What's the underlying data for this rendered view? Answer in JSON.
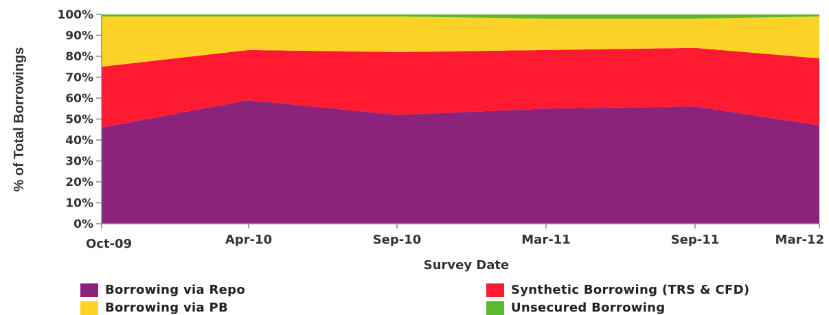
{
  "chart_data": {
    "type": "area",
    "stacked": true,
    "normalized": true,
    "title": "",
    "xlabel": "Survey Date",
    "ylabel": "% of Total Borrowings",
    "ylim": [
      0,
      100
    ],
    "y_ticks": [
      "0%",
      "10%",
      "20%",
      "30%",
      "40%",
      "50%",
      "60%",
      "70%",
      "80%",
      "90%",
      "100%"
    ],
    "categories": [
      "Oct-09",
      "Apr-10",
      "Sep-10",
      "Mar-11",
      "Sep-11",
      "Mar-12"
    ],
    "series": [
      {
        "name": "Borrowing via Repo",
        "color": "#8b237c",
        "values": [
          46,
          59,
          52,
          55,
          56,
          47
        ]
      },
      {
        "name": "Synthetic Borrowing (TRS & CFD)",
        "color": "#fe1a30",
        "values": [
          29,
          24,
          30,
          28,
          28,
          32
        ]
      },
      {
        "name": "Borrowing via PB",
        "color": "#fed327",
        "values": [
          24,
          16,
          17,
          15,
          14,
          20
        ]
      },
      {
        "name": "Unsecured Borrowing",
        "color": "#5bb92d",
        "values": [
          1,
          1,
          1,
          2,
          2,
          1
        ]
      }
    ],
    "grid": false,
    "legend_position": "bottom"
  }
}
